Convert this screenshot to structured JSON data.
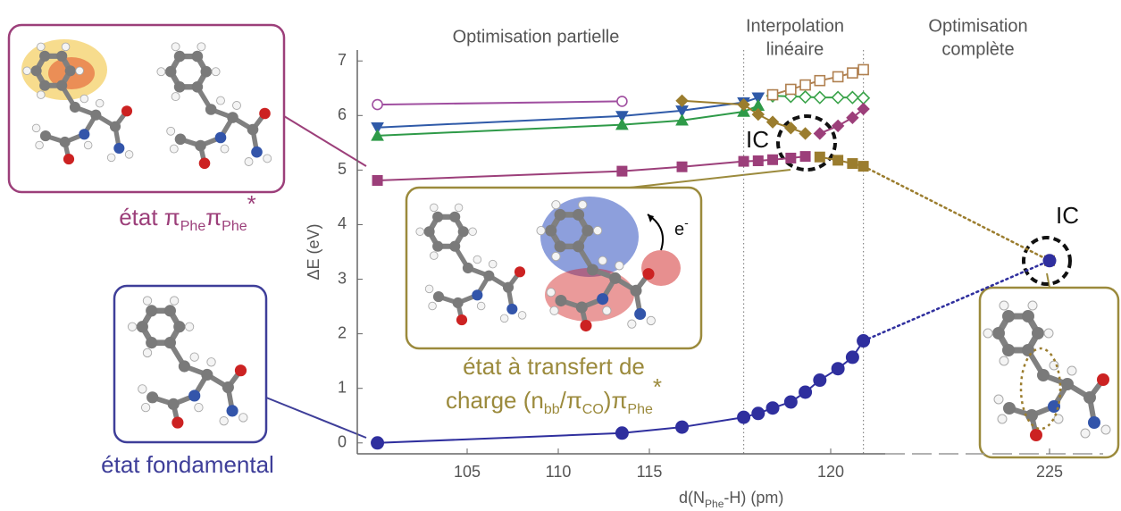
{
  "chart_data": {
    "type": "line",
    "xlabel": [
      "d(N",
      "Phe",
      "-H) (pm)"
    ],
    "ylabel": "ΔE (eV)",
    "regions": [
      "Optimisation partielle",
      "Interpolation",
      "linéaire",
      "Optimisation",
      "complète"
    ],
    "annotations": {
      "ic": [
        "IC",
        "IC"
      ],
      "pipi": [
        "état π",
        "Phe",
        "π",
        "Phe",
        "*"
      ],
      "ground": "état fondamental",
      "ct": [
        "état à transfert de",
        "charge (n",
        "bb",
        "/π",
        "CO",
        ")π",
        "Phe",
        "*"
      ],
      "electron": [
        "e",
        "-"
      ]
    },
    "xlim": [
      99,
      226
    ],
    "xticks": [
      105,
      110,
      115,
      120,
      225
    ],
    "xbreak": [
      121.5,
      224.5
    ],
    "vlines": [
      117.6,
      120.9
    ],
    "ylim": [
      -0.2,
      7.2
    ],
    "yticks": [
      0,
      1,
      2,
      3,
      4,
      5,
      6,
      7
    ],
    "series": [
      {
        "color": "#a04fa0",
        "marker": "circle",
        "open": true,
        "x": [
          100.1,
          113.5
        ],
        "values": [
          6.2,
          6.26
        ]
      },
      {
        "color": "#2f5aa8",
        "marker": "triangle-down",
        "open": false,
        "x": [
          100.1,
          113.5,
          115.9,
          117.6,
          118.0
        ],
        "values": [
          5.78,
          5.99,
          6.09,
          6.24,
          6.33
        ]
      },
      {
        "color": "#2e9a48",
        "marker": "triangle-up",
        "open": false,
        "x": [
          100.1,
          113.5,
          115.9,
          117.6,
          118.0
        ],
        "values": [
          5.63,
          5.83,
          5.91,
          6.07,
          6.18
        ]
      },
      {
        "color": "#3aa34a",
        "marker": "diamond",
        "open": true,
        "x": [
          118.4,
          118.9,
          119.3,
          119.7,
          120.2,
          120.6,
          120.9
        ],
        "values": [
          6.36,
          6.35,
          6.34,
          6.33,
          6.33,
          6.33,
          6.32
        ]
      },
      {
        "color": "#b08050",
        "marker": "square",
        "open": true,
        "x": [
          118.4,
          118.9,
          119.3,
          119.7,
          120.2,
          120.6,
          120.9
        ],
        "values": [
          6.38,
          6.48,
          6.56,
          6.64,
          6.71,
          6.78,
          6.84
        ]
      },
      {
        "color": "#9b7d2e",
        "marker": "diamond",
        "open": false,
        "x": [
          115.9,
          117.6,
          118.0,
          118.4,
          118.9,
          119.3
        ],
        "values": [
          6.27,
          6.2,
          6.02,
          5.88,
          5.77,
          5.67
        ]
      },
      {
        "color": "#9c3f7a",
        "marker": "diamond",
        "open": false,
        "x": [
          119.7,
          120.2,
          120.6,
          120.9
        ],
        "values": [
          5.67,
          5.81,
          5.96,
          6.12
        ]
      },
      {
        "color": "#9c3f7a",
        "marker": "square",
        "open": false,
        "x": [
          100.1,
          113.5,
          115.9,
          117.6,
          118.0,
          118.4,
          118.9,
          119.3
        ],
        "values": [
          4.81,
          4.98,
          5.06,
          5.16,
          5.17,
          5.19,
          5.22,
          5.25
        ]
      },
      {
        "color": "#9b7d2e",
        "marker": "square",
        "open": false,
        "x": [
          119.7,
          120.2,
          120.6,
          120.9,
          225
        ],
        "values": [
          5.24,
          5.18,
          5.12,
          5.07,
          3.34
        ]
      },
      {
        "color": "#2f2f9e",
        "marker": "circle",
        "open": false,
        "x": [
          100.1,
          113.5,
          115.9,
          117.6,
          118.0,
          118.4,
          118.9,
          119.3,
          119.7,
          120.2,
          120.6,
          120.9,
          225
        ],
        "values": [
          0,
          0.18,
          0.29,
          0.47,
          0.54,
          0.64,
          0.75,
          0.93,
          1.15,
          1.36,
          1.57,
          1.87,
          3.34
        ]
      }
    ]
  }
}
